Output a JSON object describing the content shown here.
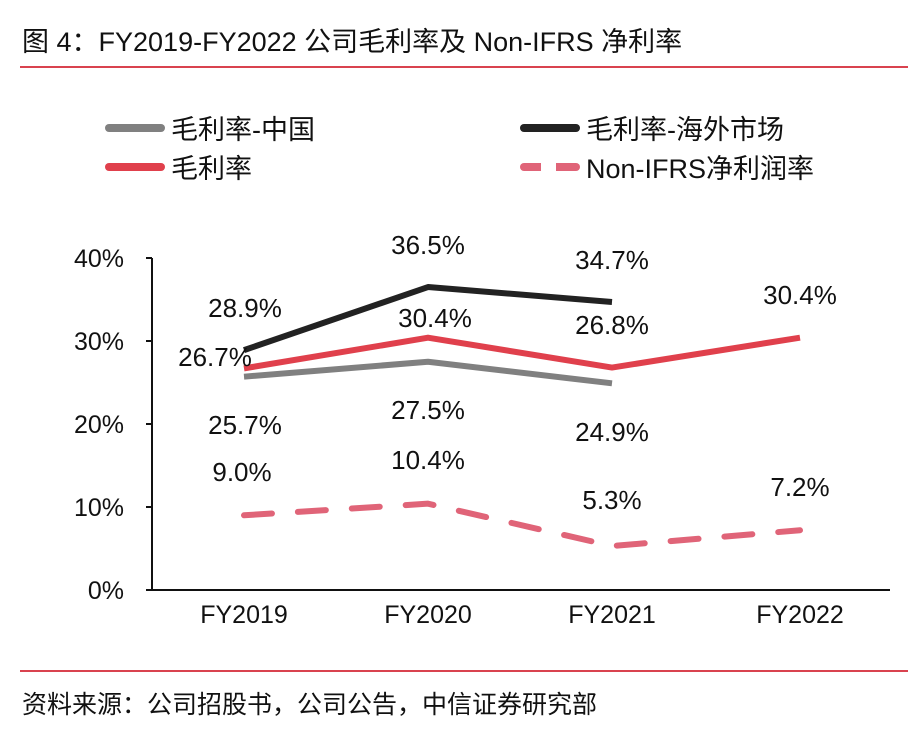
{
  "title": "图 4：FY2019-FY2022 公司毛利率及 Non-IFRS 净利率",
  "source": "资料来源：公司招股书，公司公告，中信证券研究部",
  "chart_data": {
    "type": "line",
    "categories": [
      "FY2019",
      "FY2020",
      "FY2021",
      "FY2022"
    ],
    "ylim": [
      0,
      40
    ],
    "yticks": [
      "0%",
      "10%",
      "20%",
      "30%",
      "40%"
    ],
    "ytick_values": [
      0,
      10,
      20,
      30,
      40
    ],
    "legend_placement": "top",
    "series": [
      {
        "name": "毛利率-中国",
        "color": "#808080",
        "dashed": false,
        "values": [
          25.7,
          27.5,
          24.9,
          null
        ],
        "labels": [
          "25.7%",
          "27.5%",
          "24.9%",
          null
        ]
      },
      {
        "name": "毛利率-海外市场",
        "color": "#222222",
        "dashed": false,
        "values": [
          28.9,
          36.5,
          34.7,
          null
        ],
        "labels": [
          "28.9%",
          "36.5%",
          "34.7%",
          null
        ]
      },
      {
        "name": "毛利率",
        "color": "#e0404c",
        "dashed": false,
        "values": [
          26.7,
          30.4,
          26.8,
          30.4
        ],
        "labels": [
          "26.7%",
          "30.4%",
          "26.8%",
          "30.4%"
        ]
      },
      {
        "name": "Non-IFRS净利润率",
        "color": "#e06478",
        "dashed": true,
        "values": [
          9.0,
          10.4,
          5.3,
          7.2
        ],
        "labels": [
          "9.0%",
          "10.4%",
          "5.3%",
          "7.2%"
        ]
      }
    ]
  }
}
